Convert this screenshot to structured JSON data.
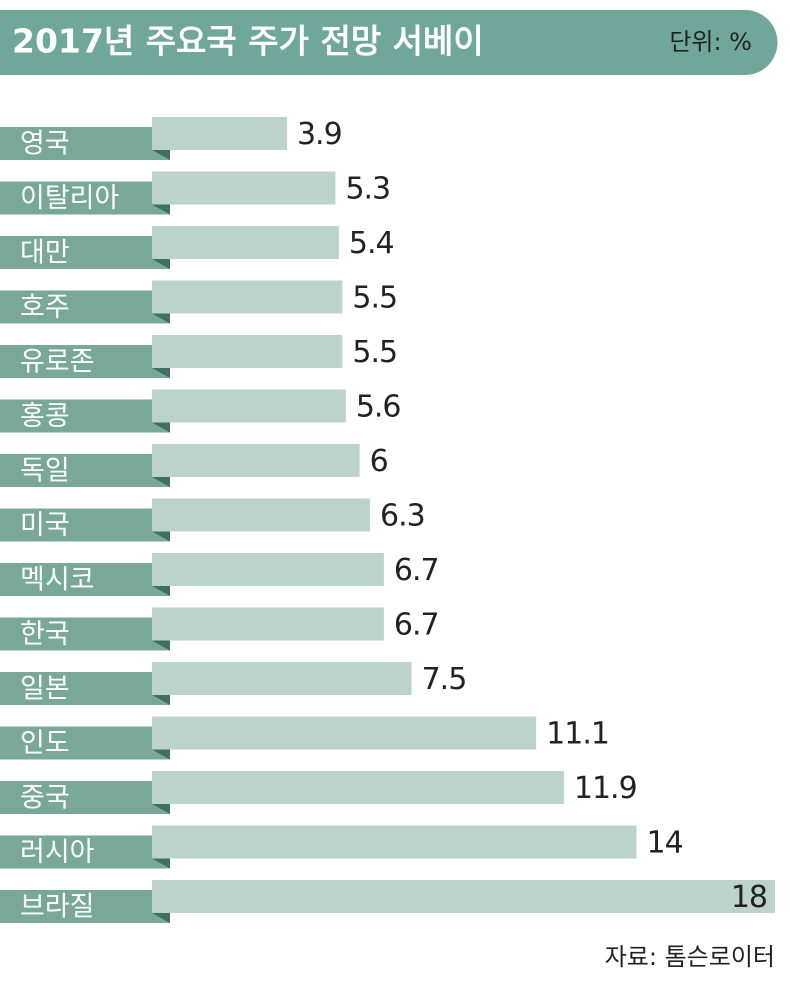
{
  "chart_data": {
    "type": "bar",
    "orientation": "horizontal",
    "title": "2017년 주요국 주가 전망 서베이",
    "unit_label": "단위: %",
    "source": "자료: 톰슨로이터",
    "categories": [
      "영국",
      "이탈리아",
      "대만",
      "호주",
      "유로존",
      "홍콩",
      "독일",
      "미국",
      "멕시코",
      "한국",
      "일본",
      "인도",
      "중국",
      "러시아",
      "브라질"
    ],
    "values": [
      3.9,
      5.3,
      5.4,
      5.5,
      5.5,
      5.6,
      6,
      6.3,
      6.7,
      6.7,
      7.5,
      11.1,
      11.9,
      14,
      18
    ],
    "color": "#bcd3cc",
    "label_color": "#7aa898",
    "header_color": "#6fa89a",
    "xlim": [
      0,
      18
    ]
  }
}
